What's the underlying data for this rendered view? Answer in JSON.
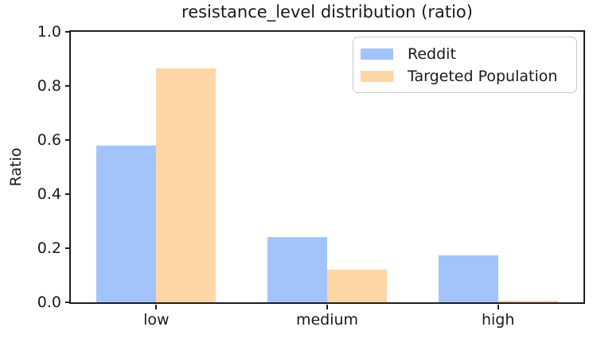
{
  "chart_data": {
    "type": "bar",
    "title": "resistance_level distribution (ratio)",
    "ylabel": "Ratio",
    "xlabel": "",
    "categories": [
      "low",
      "medium",
      "high"
    ],
    "series": [
      {
        "name": "Reddit",
        "color": "#a3c4fa",
        "values": [
          0.58,
          0.24,
          0.175
        ]
      },
      {
        "name": "Targeted Population",
        "color": "#ffd6a5",
        "values": [
          0.865,
          0.12,
          0.005
        ]
      }
    ],
    "ylim": [
      0.0,
      1.0
    ],
    "yticks": [
      0.0,
      0.2,
      0.4,
      0.6,
      0.8,
      1.0
    ],
    "ytick_labels": [
      "0.0",
      "0.2",
      "0.4",
      "0.6",
      "0.8",
      "1.0"
    ],
    "bar_width": 0.35,
    "grid": false,
    "legend_position": "upper right",
    "axis_color": "#1f1f1f",
    "background_color": "#ffffff"
  }
}
